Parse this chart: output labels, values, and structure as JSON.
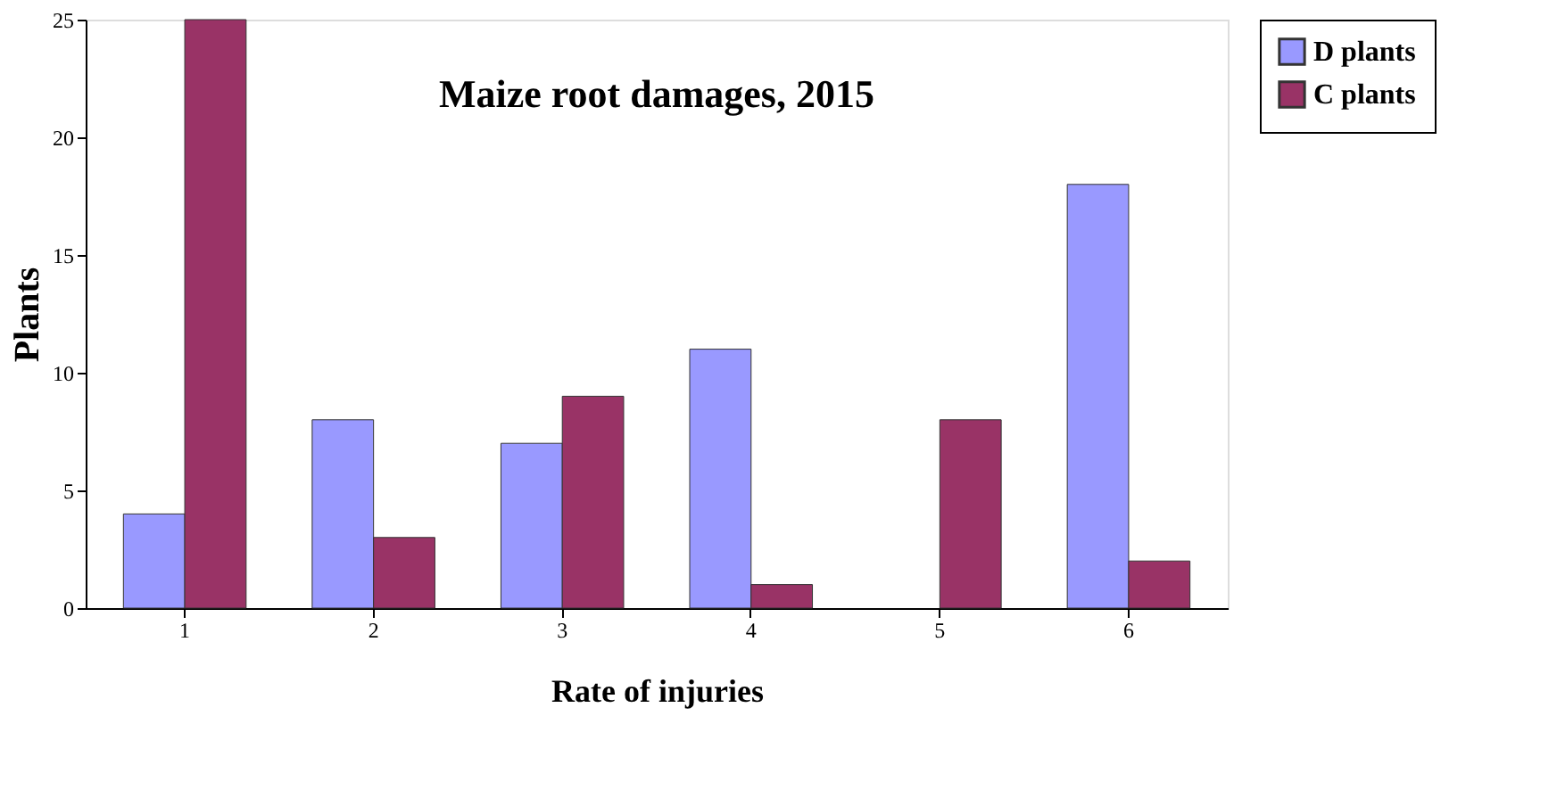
{
  "chart_data": {
    "type": "bar",
    "title": "Maize root damages, 2015",
    "xlabel": "Rate of injuries",
    "ylabel": "Plants",
    "categories": [
      "1",
      "2",
      "3",
      "4",
      "5",
      "6"
    ],
    "series": [
      {
        "name": "D plants",
        "color": "#9999ff",
        "values": [
          4,
          8,
          7,
          11,
          null,
          18
        ]
      },
      {
        "name": "C plants",
        "color": "#993366",
        "values": [
          25,
          3,
          9,
          1,
          8,
          2
        ]
      }
    ],
    "ylim": [
      0,
      25
    ],
    "yticks": [
      0,
      5,
      10,
      15,
      20,
      25
    ],
    "grid": false,
    "legend": "right"
  }
}
